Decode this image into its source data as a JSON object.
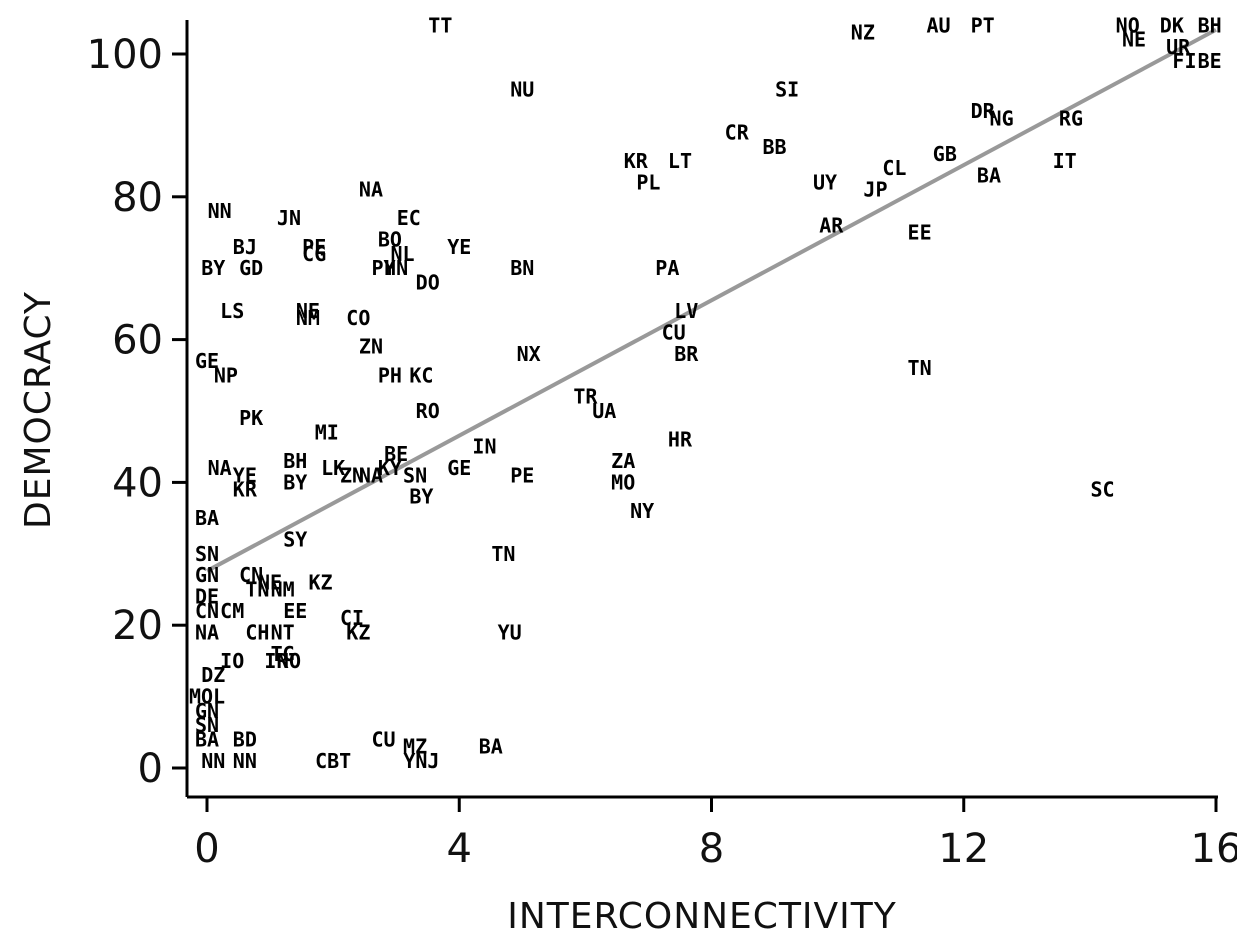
{
  "chart_data": {
    "type": "scatter",
    "title": "",
    "xlabel": "INTERCONNECTIVITY",
    "ylabel": "DEMOCRACY",
    "xlim": [
      0,
      16
    ],
    "ylim": [
      0,
      100
    ],
    "x_ticks": [
      "0",
      "4",
      "8",
      "12",
      "16"
    ],
    "y_ticks": [
      "0",
      "20",
      "40",
      "60",
      "80",
      "100"
    ],
    "grid": false,
    "legend": "none",
    "fit_line": {
      "x": [
        0,
        16
      ],
      "y": [
        27.6,
        103.4
      ],
      "color": "#999999"
    },
    "points": [
      {
        "label": "TT",
        "x": 3.7,
        "y": 104
      },
      {
        "label": "NZ",
        "x": 10.4,
        "y": 103
      },
      {
        "label": "AU",
        "x": 11.6,
        "y": 104
      },
      {
        "label": "PT",
        "x": 12.3,
        "y": 104
      },
      {
        "label": "NO",
        "x": 14.6,
        "y": 104
      },
      {
        "label": "DK",
        "x": 15.3,
        "y": 104
      },
      {
        "label": "BH",
        "x": 15.9,
        "y": 104
      },
      {
        "label": "NE",
        "x": 14.7,
        "y": 102
      },
      {
        "label": "UR",
        "x": 15.4,
        "y": 101
      },
      {
        "label": "FI",
        "x": 15.5,
        "y": 99
      },
      {
        "label": "BE",
        "x": 15.9,
        "y": 99
      },
      {
        "label": "NU",
        "x": 5.0,
        "y": 95
      },
      {
        "label": "SI",
        "x": 9.2,
        "y": 95
      },
      {
        "label": "DR",
        "x": 12.3,
        "y": 92
      },
      {
        "label": "NG",
        "x": 12.6,
        "y": 91
      },
      {
        "label": "RG",
        "x": 13.7,
        "y": 91
      },
      {
        "label": "CR",
        "x": 8.4,
        "y": 89
      },
      {
        "label": "BB",
        "x": 9.0,
        "y": 87
      },
      {
        "label": "GB",
        "x": 11.7,
        "y": 86
      },
      {
        "label": "KR",
        "x": 6.8,
        "y": 85
      },
      {
        "label": "LT",
        "x": 7.5,
        "y": 85
      },
      {
        "label": "IT",
        "x": 13.6,
        "y": 85
      },
      {
        "label": "CL",
        "x": 10.9,
        "y": 84
      },
      {
        "label": "BA",
        "x": 12.4,
        "y": 83
      },
      {
        "label": "PL",
        "x": 7.0,
        "y": 82
      },
      {
        "label": "UY",
        "x": 9.8,
        "y": 82
      },
      {
        "label": "JP",
        "x": 10.6,
        "y": 81
      },
      {
        "label": "NA",
        "x": 2.6,
        "y": 81
      },
      {
        "label": "NN",
        "x": 0.2,
        "y": 78
      },
      {
        "label": "JN",
        "x": 1.3,
        "y": 77
      },
      {
        "label": "EC",
        "x": 3.2,
        "y": 77
      },
      {
        "label": "AR",
        "x": 9.9,
        "y": 76
      },
      {
        "label": "EE",
        "x": 11.3,
        "y": 75
      },
      {
        "label": "BO",
        "x": 2.9,
        "y": 74
      },
      {
        "label": "PE",
        "x": 1.7,
        "y": 73
      },
      {
        "label": "CG",
        "x": 1.7,
        "y": 72
      },
      {
        "label": "NL",
        "x": 3.1,
        "y": 72
      },
      {
        "label": "YE",
        "x": 4.0,
        "y": 73
      },
      {
        "label": "BJ",
        "x": 0.6,
        "y": 73
      },
      {
        "label": "GD",
        "x": 0.7,
        "y": 70
      },
      {
        "label": "BY",
        "x": 0.1,
        "y": 70
      },
      {
        "label": "PY",
        "x": 2.8,
        "y": 70
      },
      {
        "label": "HN",
        "x": 3.0,
        "y": 70
      },
      {
        "label": "DO",
        "x": 3.5,
        "y": 68
      },
      {
        "label": "BN",
        "x": 5.0,
        "y": 70
      },
      {
        "label": "PA",
        "x": 7.3,
        "y": 70
      },
      {
        "label": "LS",
        "x": 0.4,
        "y": 64
      },
      {
        "label": "NE",
        "x": 1.6,
        "y": 64
      },
      {
        "label": "NM",
        "x": 1.6,
        "y": 63
      },
      {
        "label": "CO",
        "x": 2.4,
        "y": 63
      },
      {
        "label": "LV",
        "x": 7.6,
        "y": 64
      },
      {
        "label": "CU",
        "x": 7.4,
        "y": 61
      },
      {
        "label": "ZN",
        "x": 2.6,
        "y": 59
      },
      {
        "label": "NX",
        "x": 5.1,
        "y": 58
      },
      {
        "label": "BR",
        "x": 7.6,
        "y": 58
      },
      {
        "label": "GE",
        "x": 0.0,
        "y": 57
      },
      {
        "label": "NP",
        "x": 0.3,
        "y": 55
      },
      {
        "label": "PH",
        "x": 2.9,
        "y": 55
      },
      {
        "label": "KC",
        "x": 3.4,
        "y": 55
      },
      {
        "label": "TN",
        "x": 11.3,
        "y": 56
      },
      {
        "label": "TR",
        "x": 6.0,
        "y": 52
      },
      {
        "label": "UA",
        "x": 6.3,
        "y": 50
      },
      {
        "label": "RO",
        "x": 3.5,
        "y": 50
      },
      {
        "label": "PK",
        "x": 0.7,
        "y": 49
      },
      {
        "label": "MI",
        "x": 1.9,
        "y": 47
      },
      {
        "label": "HR",
        "x": 7.5,
        "y": 46
      },
      {
        "label": "IN",
        "x": 4.4,
        "y": 45
      },
      {
        "label": "BE",
        "x": 3.0,
        "y": 44
      },
      {
        "label": "ZA",
        "x": 6.6,
        "y": 43
      },
      {
        "label": "NA",
        "x": 0.2,
        "y": 42
      },
      {
        "label": "BH",
        "x": 1.4,
        "y": 43
      },
      {
        "label": "LK",
        "x": 2.0,
        "y": 42
      },
      {
        "label": "GE",
        "x": 4.0,
        "y": 42
      },
      {
        "label": "YE",
        "x": 0.6,
        "y": 41
      },
      {
        "label": "ZN",
        "x": 2.3,
        "y": 41
      },
      {
        "label": "NA",
        "x": 2.6,
        "y": 41
      },
      {
        "label": "KY",
        "x": 2.9,
        "y": 42
      },
      {
        "label": "SN",
        "x": 3.3,
        "y": 41
      },
      {
        "label": "PE",
        "x": 5.0,
        "y": 41
      },
      {
        "label": "BY",
        "x": 1.4,
        "y": 40
      },
      {
        "label": "KR",
        "x": 0.6,
        "y": 39
      },
      {
        "label": "MO",
        "x": 6.6,
        "y": 40
      },
      {
        "label": "BY",
        "x": 3.4,
        "y": 38
      },
      {
        "label": "NY",
        "x": 6.9,
        "y": 36
      },
      {
        "label": "SC",
        "x": 14.2,
        "y": 39
      },
      {
        "label": "BA",
        "x": 0.0,
        "y": 35
      },
      {
        "label": "SY",
        "x": 1.4,
        "y": 32
      },
      {
        "label": "SN",
        "x": 0.0,
        "y": 30
      },
      {
        "label": "TN",
        "x": 4.7,
        "y": 30
      },
      {
        "label": "GN",
        "x": 0.0,
        "y": 27
      },
      {
        "label": "CN",
        "x": 0.7,
        "y": 27
      },
      {
        "label": "TN",
        "x": 0.8,
        "y": 25
      },
      {
        "label": "NE",
        "x": 1.0,
        "y": 26
      },
      {
        "label": "NM",
        "x": 1.2,
        "y": 25
      },
      {
        "label": "KZ",
        "x": 1.8,
        "y": 26
      },
      {
        "label": "DE",
        "x": 0.0,
        "y": 24
      },
      {
        "label": "CN",
        "x": 0.0,
        "y": 22
      },
      {
        "label": "CM",
        "x": 0.4,
        "y": 22
      },
      {
        "label": "EE",
        "x": 1.4,
        "y": 22
      },
      {
        "label": "CI",
        "x": 2.3,
        "y": 21
      },
      {
        "label": "NA",
        "x": 0.0,
        "y": 19
      },
      {
        "label": "CH",
        "x": 0.8,
        "y": 19
      },
      {
        "label": "NT",
        "x": 1.2,
        "y": 19
      },
      {
        "label": "KZ",
        "x": 2.4,
        "y": 19
      },
      {
        "label": "YU",
        "x": 4.8,
        "y": 19
      },
      {
        "label": "TG",
        "x": 1.2,
        "y": 16
      },
      {
        "label": "IO",
        "x": 0.4,
        "y": 15
      },
      {
        "label": "IR",
        "x": 1.1,
        "y": 15
      },
      {
        "label": "NO",
        "x": 1.3,
        "y": 15
      },
      {
        "label": "DZ",
        "x": 0.1,
        "y": 13
      },
      {
        "label": "MOL",
        "x": 0.0,
        "y": 10
      },
      {
        "label": "GN",
        "x": 0.0,
        "y": 8
      },
      {
        "label": "SN",
        "x": 0.0,
        "y": 6
      },
      {
        "label": "BA",
        "x": 0.0,
        "y": 4
      },
      {
        "label": "BD",
        "x": 0.6,
        "y": 4
      },
      {
        "label": "CU",
        "x": 2.8,
        "y": 4
      },
      {
        "label": "BA",
        "x": 4.5,
        "y": 3
      },
      {
        "label": "MZ",
        "x": 3.3,
        "y": 3
      },
      {
        "label": "NN",
        "x": 0.1,
        "y": 1
      },
      {
        "label": "NN",
        "x": 0.6,
        "y": 1
      },
      {
        "label": "CBT",
        "x": 2.0,
        "y": 1
      },
      {
        "label": "YNJ",
        "x": 3.4,
        "y": 1
      }
    ]
  }
}
